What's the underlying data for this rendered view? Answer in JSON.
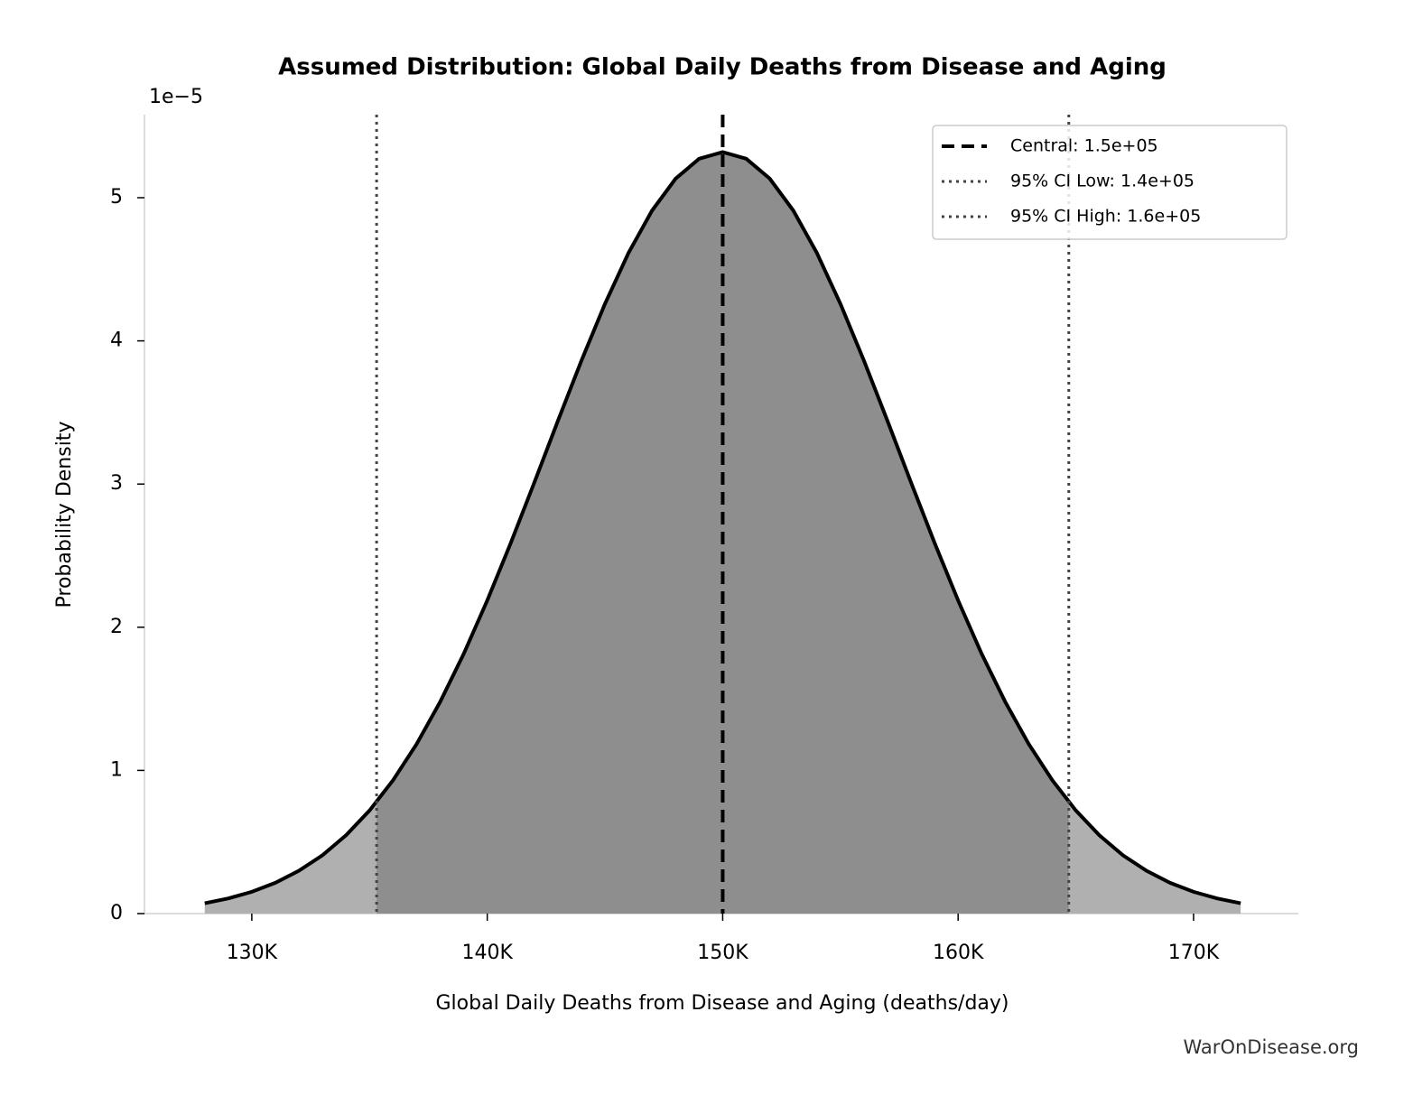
{
  "chart_data": {
    "type": "area",
    "title": "Assumed Distribution: Global Daily Deaths from Disease and Aging",
    "x_label": "Global Daily Deaths from Disease and Aging (deaths/day)",
    "y_label": "Probability Density",
    "y_offset_label": "1e−5",
    "watermark": "WarOnDisease.org",
    "x": [
      128000,
      129000,
      130000,
      131000,
      132000,
      133000,
      134000,
      135000,
      136000,
      137000,
      138000,
      139000,
      140000,
      141000,
      142000,
      143000,
      144000,
      145000,
      146000,
      147000,
      148000,
      149000,
      150000,
      151000,
      152000,
      153000,
      154000,
      155000,
      156000,
      157000,
      158000,
      159000,
      160000,
      161000,
      162000,
      163000,
      164000,
      165000,
      166000,
      167000,
      168000,
      169000,
      170000,
      171000,
      172000
    ],
    "series": [
      {
        "color": "#000000",
        "fill": "#b0b0b0",
        "inner_fill": "#8e8e8e",
        "values": [
          0.072,
          0.106,
          0.152,
          0.215,
          0.299,
          0.407,
          0.547,
          0.72,
          0.932,
          1.184,
          1.479,
          1.814,
          2.187,
          2.589,
          3.011,
          3.441,
          3.862,
          4.259,
          4.614,
          4.91,
          5.133,
          5.272,
          5.319,
          5.272,
          5.133,
          4.91,
          4.614,
          4.259,
          3.862,
          3.441,
          3.011,
          2.589,
          2.187,
          1.814,
          1.479,
          1.184,
          0.932,
          0.72,
          0.547,
          0.407,
          0.299,
          0.215,
          0.152,
          0.106,
          0.072
        ]
      }
    ],
    "lines": [
      {
        "name": "Central: 1.5e+05",
        "value": 150000,
        "style": "dashed",
        "color": "#000000"
      },
      {
        "name": "95% CI Low: 1.4e+05",
        "value": 135300,
        "style": "dotted",
        "color": "#444444"
      },
      {
        "name": "95% CI High: 1.6e+05",
        "value": 164700,
        "style": "dotted",
        "color": "#444444"
      }
    ],
    "xlim": [
      125440,
      174450
    ],
    "ylim": [
      0,
      5.58
    ],
    "xticks": [
      {
        "value": 130000,
        "label": "130K"
      },
      {
        "value": 140000,
        "label": "140K"
      },
      {
        "value": 150000,
        "label": "150K"
      },
      {
        "value": 160000,
        "label": "160K"
      },
      {
        "value": 170000,
        "label": "170K"
      }
    ],
    "yticks": [
      0,
      1,
      2,
      3,
      4,
      5
    ],
    "legend": "upper right"
  }
}
